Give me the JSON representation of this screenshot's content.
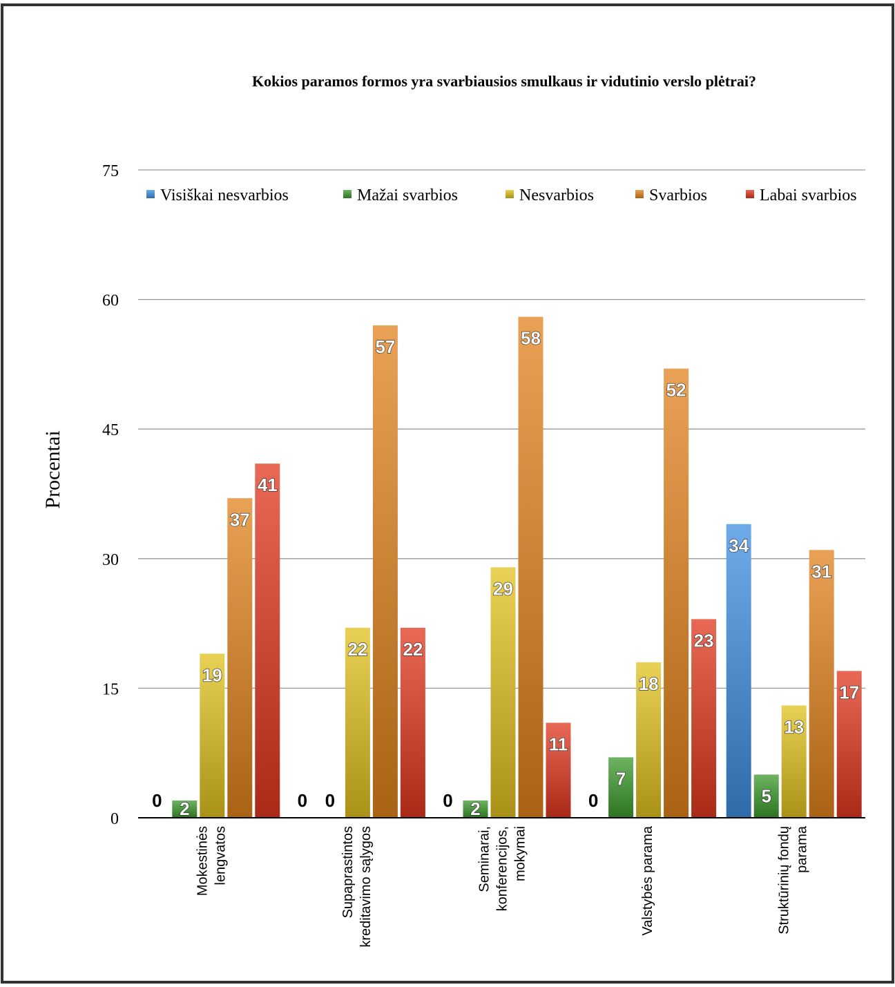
{
  "chart_data": {
    "type": "bar",
    "title": "Kokios paramos formos yra svarbiausios smulkaus ir vidutinio  verslo plėtrai?",
    "ylabel": "Procentai",
    "xlabel": "",
    "ylim": [
      0,
      75
    ],
    "yticks": [
      0,
      15,
      30,
      45,
      60,
      75
    ],
    "grid": true,
    "legend_position": "top",
    "categories": [
      [
        "Mokestinės",
        "lengvatos"
      ],
      [
        "Supaprastintos",
        "kreditavimo  sąlygos"
      ],
      [
        "Seminarai,",
        "konferencijos,",
        "mokymai"
      ],
      [
        "Valstybės parama"
      ],
      [
        "Struktūrinių  fondų",
        "parama"
      ]
    ],
    "series": [
      {
        "name": "Visiškai nesvarbios",
        "color": "#3f8fe0",
        "values": [
          0,
          0,
          0,
          0,
          34
        ]
      },
      {
        "name": "Mažai svarbios",
        "color": "#3c9a2c",
        "values": [
          2,
          0,
          2,
          7,
          5
        ]
      },
      {
        "name": "Nesvarbios",
        "color": "#e2c11e",
        "values": [
          19,
          22,
          29,
          18,
          13
        ]
      },
      {
        "name": "Svarbios",
        "color": "#e2821c",
        "values": [
          37,
          57,
          58,
          52,
          31
        ]
      },
      {
        "name": "Labai svarbios",
        "color": "#e0381e",
        "values": [
          41,
          22,
          11,
          23,
          17
        ]
      }
    ]
  }
}
